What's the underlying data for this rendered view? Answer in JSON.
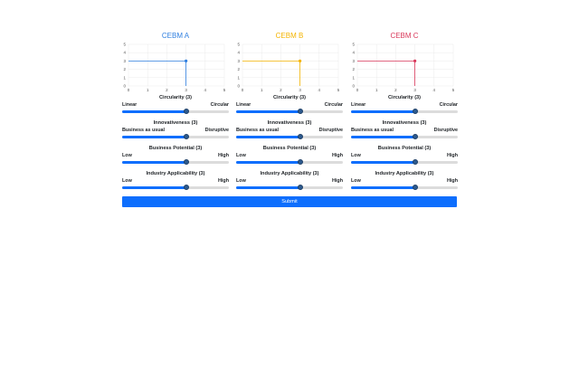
{
  "cebms": [
    {
      "name": "CEBM A",
      "color": "#2f7fe0",
      "chart_data": {
        "type": "line",
        "x": [
          0,
          3,
          3
        ],
        "y": [
          3,
          3,
          0
        ],
        "point": [
          3,
          3
        ],
        "xlim": [
          0,
          5
        ],
        "ylim": [
          0,
          5
        ],
        "xticks": [
          "0",
          "1",
          "2",
          "3",
          "4",
          "5"
        ],
        "yticks": [
          "0",
          "1",
          "2",
          "3",
          "4",
          "5"
        ],
        "grid": true
      },
      "sliders": [
        {
          "title": "Circularity (3)",
          "low": "Linear",
          "high": "Circular",
          "value": 3,
          "max": 5
        },
        {
          "title": "Innovativeness (3)",
          "low": "Business as usual",
          "high": "Disruptive",
          "value": 3,
          "max": 5
        },
        {
          "title": "Business Potential (3)",
          "low": "Low",
          "high": "High",
          "value": 3,
          "max": 5
        },
        {
          "title": "Industry Applicability (3)",
          "low": "Low",
          "high": "High",
          "value": 3,
          "max": 5
        }
      ]
    },
    {
      "name": "CEBM B",
      "color": "#f4b400",
      "chart_data": {
        "type": "line",
        "x": [
          0,
          3,
          3
        ],
        "y": [
          3,
          3,
          0
        ],
        "point": [
          3,
          3
        ],
        "xlim": [
          0,
          5
        ],
        "ylim": [
          0,
          5
        ],
        "xticks": [
          "0",
          "1",
          "2",
          "3",
          "4",
          "5"
        ],
        "yticks": [
          "0",
          "1",
          "2",
          "3",
          "4",
          "5"
        ],
        "grid": true
      },
      "sliders": [
        {
          "title": "Circularity (3)",
          "low": "Linear",
          "high": "Circular",
          "value": 3,
          "max": 5
        },
        {
          "title": "Innovativeness (3)",
          "low": "Business as usual",
          "high": "Disruptive",
          "value": 3,
          "max": 5
        },
        {
          "title": "Business Potential (3)",
          "low": "Low",
          "high": "High",
          "value": 3,
          "max": 5
        },
        {
          "title": "Industry Applicability (3)",
          "low": "Low",
          "high": "High",
          "value": 3,
          "max": 5
        }
      ]
    },
    {
      "name": "CEBM C",
      "color": "#d9385a",
      "chart_data": {
        "type": "line",
        "x": [
          0,
          3,
          3
        ],
        "y": [
          3,
          3,
          0
        ],
        "point": [
          3,
          3
        ],
        "xlim": [
          0,
          5
        ],
        "ylim": [
          0,
          5
        ],
        "xticks": [
          "0",
          "1",
          "2",
          "3",
          "4",
          "5"
        ],
        "yticks": [
          "0",
          "1",
          "2",
          "3",
          "4",
          "5"
        ],
        "grid": true
      },
      "sliders": [
        {
          "title": "Circularity (3)",
          "low": "Linear",
          "high": "Circular",
          "value": 3,
          "max": 5
        },
        {
          "title": "Innovativeness (3)",
          "low": "Business as usual",
          "high": "Disruptive",
          "value": 3,
          "max": 5
        },
        {
          "title": "Business Potential (3)",
          "low": "Low",
          "high": "High",
          "value": 3,
          "max": 5
        },
        {
          "title": "Industry Applicability (3)",
          "low": "Low",
          "high": "High",
          "value": 3,
          "max": 5
        }
      ]
    }
  ],
  "submit_label": "Submit",
  "accent_color": "#0d6efd"
}
